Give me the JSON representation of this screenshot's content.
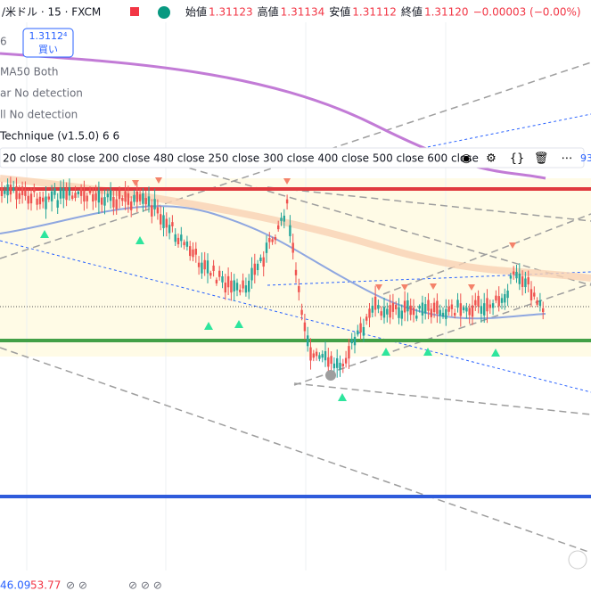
{
  "header": {
    "symbol": "/米ドル · 15 · FXCM",
    "ohlc": [
      {
        "label": "始値",
        "value": "1.31123"
      },
      {
        "label": "高値",
        "value": "1.31134"
      },
      {
        "label": "安値",
        "value": "1.31112"
      },
      {
        "label": "終値",
        "value": "1.31120"
      }
    ],
    "change": "−0.00003 (−0.00%)"
  },
  "side_label": "6",
  "price_box": {
    "price": "1.3112⁴",
    "action": "買い"
  },
  "indicators": [
    "MA50 Both",
    "ar No detection",
    "ll No detection",
    "Technique (v1.5.0) 6 6"
  ],
  "ma_row": "20 close 80 close 200 close 480 close 250 close 300 close 400 close 500 close 600 close",
  "right_edge": "93",
  "footer": [
    "46.09",
    "53.77"
  ]
}
